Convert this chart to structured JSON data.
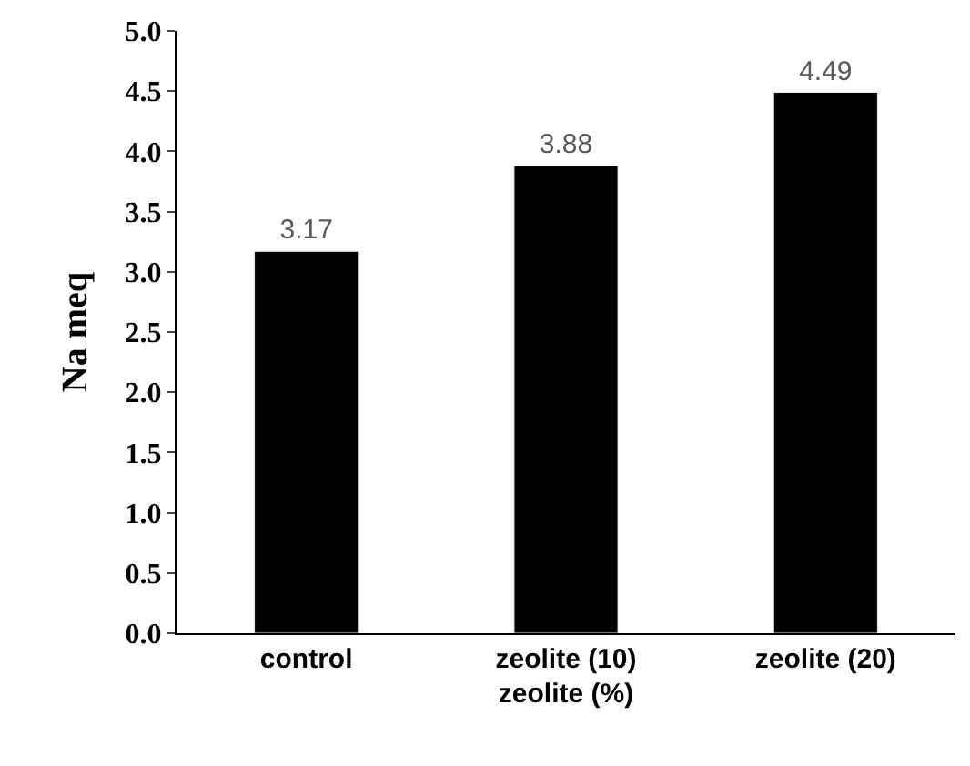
{
  "chart_data": {
    "type": "bar",
    "xlabel": "zeolite (%)",
    "ylabel": "Na meq",
    "categories": [
      "control",
      "zeolite (10)",
      "zeolite (20)"
    ],
    "values": [
      3.17,
      3.88,
      4.49
    ],
    "color": "#000000",
    "ylim": [
      0,
      5
    ],
    "yticks": [
      "0.0",
      "0.5",
      "1.0",
      "1.5",
      "2.0",
      "2.5",
      "3.0",
      "3.5",
      "4.0",
      "4.5",
      "5.0"
    ],
    "data_labels": true
  }
}
